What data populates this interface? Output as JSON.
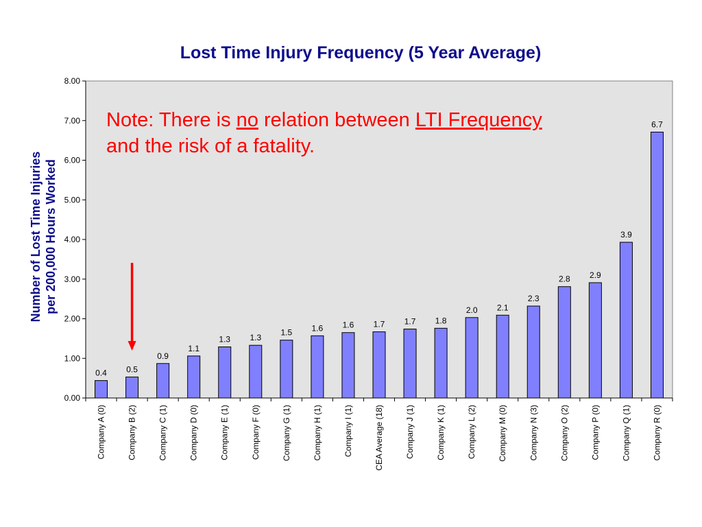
{
  "chart_data": {
    "type": "bar",
    "title": "Lost Time Injury Frequency (5 Year Average)",
    "ylabel_lines": [
      "Number of Lost Time Injuries",
      "per 200,000 Hours Worked"
    ],
    "xlabel": "",
    "ylim": [
      0,
      8
    ],
    "ytick_labels": [
      "0.00",
      "1.00",
      "2.00",
      "3.00",
      "4.00",
      "5.00",
      "6.00",
      "7.00",
      "8.00"
    ],
    "categories": [
      "Company A (0)",
      "Company B (2)",
      "Company C (1)",
      "Company D (0)",
      "Company E (1)",
      "Company F (0)",
      "Company G (1)",
      "Company H (1)",
      "Company I (1)",
      "CEA Average (18)",
      "Company J (1)",
      "Company K (1)",
      "Company L (2)",
      "Company M (0)",
      "Company N (3)",
      "Company O (2)",
      "Company P (0)",
      "Company Q (1)",
      "Company R (0)"
    ],
    "values": [
      0.44,
      0.53,
      0.87,
      1.06,
      1.29,
      1.33,
      1.46,
      1.57,
      1.65,
      1.67,
      1.74,
      1.76,
      2.03,
      2.09,
      2.32,
      2.81,
      2.91,
      3.93,
      6.71
    ],
    "data_labels": [
      "0.4",
      "0.5",
      "0.9",
      "1.1",
      "1.3",
      "1.3",
      "1.5",
      "1.6",
      "1.6",
      "1.7",
      "1.7",
      "1.8",
      "2.0",
      "2.1",
      "2.3",
      "2.8",
      "2.9",
      "3.9",
      "6.7"
    ],
    "grid": false,
    "legend": "none",
    "colors": {
      "bar_fill": "#8080ff",
      "bar_stroke": "#000000",
      "plot_bg": "#e3e3e3",
      "title": "#0d0d8c",
      "ylabel": "#0d0d8c",
      "note": "#ff0000",
      "arrow": "#ff0000"
    },
    "annotation": {
      "parts": [
        {
          "text": "Note: There is ",
          "underline": false
        },
        {
          "text": "no",
          "underline": true
        },
        {
          "text": " relation between ",
          "underline": false
        },
        {
          "text": "LTI Frequency",
          "underline": true
        },
        {
          "text": "and the risk of a fatality.",
          "underline": false,
          "newline": true
        }
      ]
    },
    "highlight": {
      "category_index": 1,
      "marker": "down-arrow"
    }
  }
}
